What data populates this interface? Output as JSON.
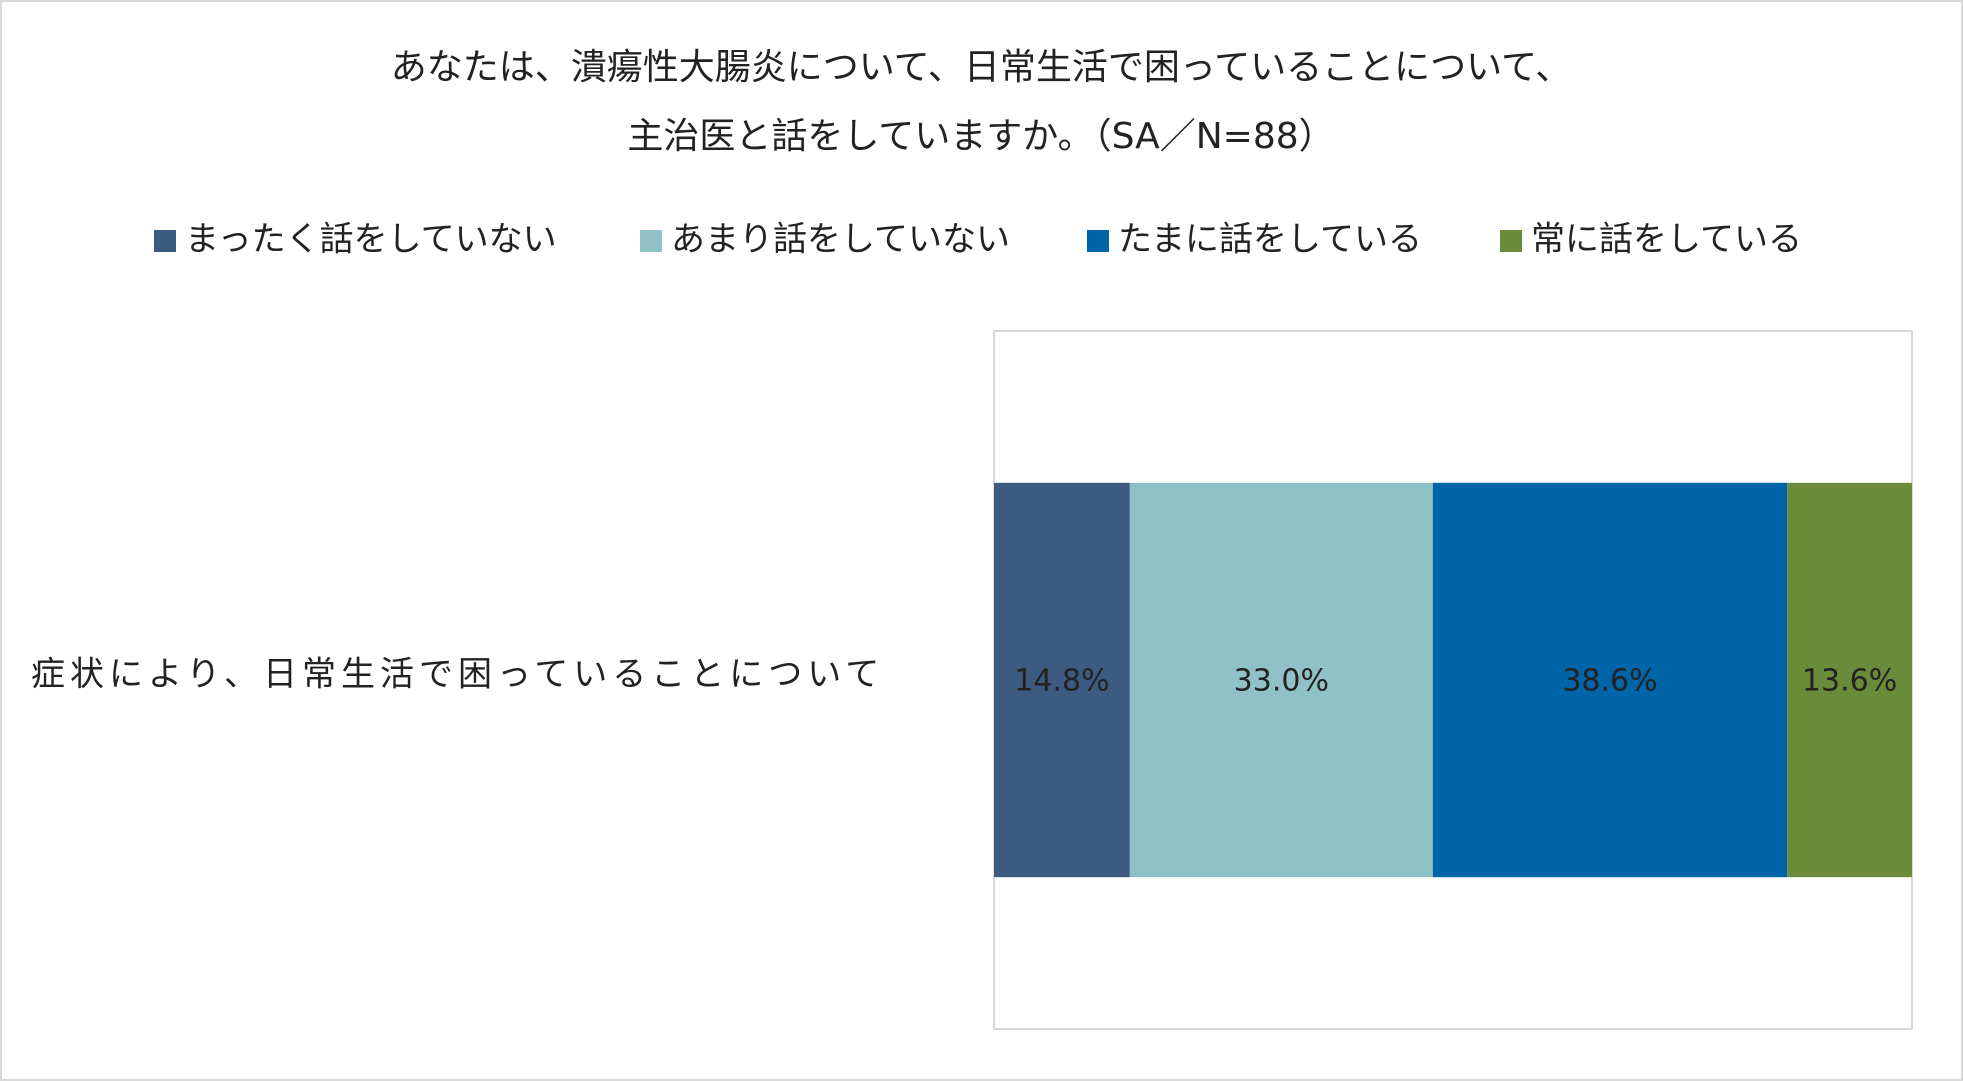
{
  "chart_data": {
    "type": "stacked_bar_horizontal",
    "title": [
      "あなたは、潰瘍性大腸炎について、日常生活で困っていることについて、",
      "主治医と話をしていますか。（SA／N=88）"
    ],
    "categories": [
      "症状により、日常生活で困っていることについて"
    ],
    "series": [
      {
        "name": "まったく話をしていない",
        "color": "#3d5a80",
        "values": [
          14.8
        ],
        "value_labels": [
          "14.8%"
        ]
      },
      {
        "name": "あまり話をしていない",
        "color": "#8fc1c6",
        "values": [
          33.0
        ],
        "value_labels": [
          "33.0%"
        ]
      },
      {
        "name": "たまに話をしている",
        "color": "#0064a8",
        "values": [
          38.6
        ],
        "value_labels": [
          "38.6%"
        ]
      },
      {
        "name": "常に話をしている",
        "color": "#6a8c3a",
        "values": [
          13.6
        ],
        "value_labels": [
          "13.6%"
        ]
      }
    ],
    "xlim": [
      0,
      100
    ]
  }
}
